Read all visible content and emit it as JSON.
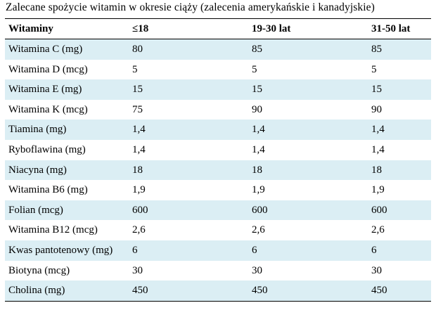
{
  "title": "Zalecane spożycie witamin w okresie ciąży (zalecenia amerykańskie i kanadyjskie)",
  "headers": [
    "Witaminy",
    "≤18",
    "19-30 lat",
    "31-50 lat"
  ],
  "rows": [
    {
      "name": "Witamina C (mg)",
      "v1": "80",
      "v2": "85",
      "v3": "85"
    },
    {
      "name": "Witamina D (mcg)",
      "v1": "5",
      "v2": "5",
      "v3": "5"
    },
    {
      "name": "Witamina E (mg)",
      "v1": "15",
      "v2": "15",
      "v3": "15"
    },
    {
      "name": "Witamina K (mcg)",
      "v1": "75",
      "v2": "90",
      "v3": "90"
    },
    {
      "name": "Tiamina (mg)",
      "v1": "1,4",
      "v2": "1,4",
      "v3": "1,4"
    },
    {
      "name": "Ryboflawina (mg)",
      "v1": "1,4",
      "v2": "1,4",
      "v3": "1,4"
    },
    {
      "name": "Niacyna (mg)",
      "v1": "18",
      "v2": "18",
      "v3": "18"
    },
    {
      "name": "Witamina B6 (mg)",
      "v1": "1,9",
      "v2": "1,9",
      "v3": "1,9"
    },
    {
      "name": "Folian (mcg)",
      "v1": "600",
      "v2": "600",
      "v3": "600"
    },
    {
      "name": "Witamina B12 (mcg)",
      "v1": "2,6",
      "v2": "2,6",
      "v3": "2,6"
    },
    {
      "name": "Kwas pantotenowy (mg)",
      "v1": "6",
      "v2": "6",
      "v3": "6"
    },
    {
      "name": "Biotyna (mcg)",
      "v1": "30",
      "v2": "30",
      "v3": "30"
    },
    {
      "name": "Cholina (mg)",
      "v1": "450",
      "v2": "450",
      "v3": "450"
    }
  ]
}
